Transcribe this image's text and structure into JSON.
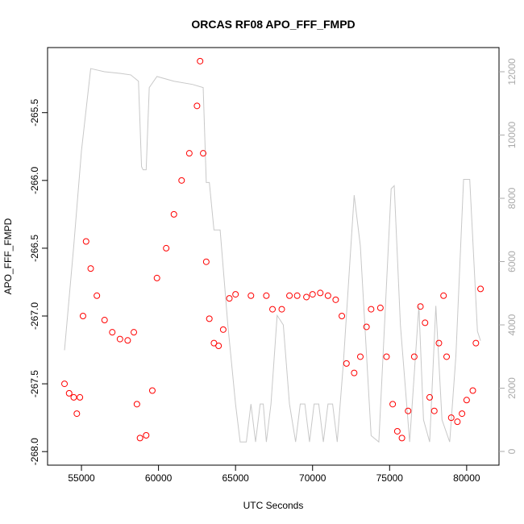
{
  "chart_data": {
    "type": "scatter",
    "title": "ORCAS RF08 APO_FFF_FMPD",
    "x_label": "UTC Seconds",
    "y_label": "APO_FFF_FMPD",
    "xlim": [
      52800,
      82100
    ],
    "ylim": [
      -268.1,
      -265.02
    ],
    "y2lim": [
      -433,
      12764
    ],
    "xticks": [
      55000,
      60000,
      65000,
      70000,
      75000,
      80000
    ],
    "yticks": [
      {
        "value": -268,
        "label": "-268.0"
      },
      {
        "value": -267.5,
        "label": "-267.5"
      },
      {
        "value": -267,
        "label": "-267.0"
      },
      -266.5,
      {
        "value": -266,
        "label": "-266.0"
      },
      -265.5
    ],
    "y2ticks": [
      0,
      2000,
      4000,
      6000,
      8000,
      10000,
      12000
    ],
    "series": [
      {
        "color": "#ff0000",
        "marker": "open-circle",
        "x": [
          53900,
          54200,
          54500,
          54700,
          54900,
          55100,
          55300,
          55600,
          56000,
          56500,
          57000,
          57500,
          58000,
          58400,
          58600,
          58800,
          59200,
          59600,
          59900,
          60500,
          61000,
          61500,
          62000,
          62500,
          62700,
          62900,
          63100,
          63300,
          63600,
          63900,
          64200,
          64600,
          65000,
          66000,
          67000,
          67400,
          68000,
          68500,
          69000,
          69600,
          70000,
          70500,
          71000,
          71500,
          71900,
          72200,
          72700,
          73100,
          73500,
          73800,
          74400,
          74800,
          75200,
          75500,
          75800,
          76200,
          76600,
          77000,
          77300,
          77600,
          77900,
          78200,
          78500,
          78700,
          79000,
          79400,
          79700,
          80000,
          80400,
          80600,
          80900
        ],
        "values": [
          -267.5,
          -267.57,
          -267.6,
          -267.72,
          -267.6,
          -267.0,
          -266.45,
          -266.65,
          -266.85,
          -267.03,
          -267.12,
          -267.17,
          -267.18,
          -267.12,
          -267.65,
          -267.9,
          -267.88,
          -267.55,
          -266.72,
          -266.5,
          -266.25,
          -266.0,
          -265.8,
          -265.45,
          -265.12,
          -265.8,
          -266.6,
          -267.02,
          -267.2,
          -267.22,
          -267.1,
          -266.87,
          -266.84,
          -266.85,
          -266.85,
          -266.95,
          -266.95,
          -266.85,
          -266.85,
          -266.86,
          -266.84,
          -266.83,
          -266.85,
          -266.88,
          -267.0,
          -267.35,
          -267.42,
          -267.3,
          -267.08,
          -266.95,
          -266.94,
          -267.3,
          -267.65,
          -267.85,
          -267.9,
          -267.7,
          -267.3,
          -266.93,
          -267.05,
          -267.6,
          -267.7,
          -267.2,
          -266.85,
          -267.3,
          -267.75,
          -267.78,
          -267.72,
          -267.62,
          -267.55,
          -267.2,
          -266.8
        ]
      },
      {
        "color": "#c8c8c8",
        "axis": "y2",
        "kind": "line",
        "x": [
          53900,
          54500,
          55000,
          55600,
          56500,
          57500,
          58200,
          58700,
          58900,
          59000,
          59200,
          59400,
          59900,
          61000,
          62200,
          62900,
          63100,
          63300,
          63600,
          64000,
          64500,
          65000,
          65300,
          65700,
          66000,
          66300,
          66600,
          66800,
          67000,
          67300,
          67700,
          68100,
          68500,
          68900,
          69200,
          69500,
          69800,
          70100,
          70400,
          70700,
          71000,
          71300,
          71600,
          72000,
          72700,
          73100,
          73800,
          74300,
          75100,
          75300,
          75700,
          76300,
          76900,
          77200,
          77600,
          78000,
          78400,
          78900,
          79300,
          79800,
          80200,
          80700,
          80900
        ],
        "values": [
          3200,
          6500,
          9500,
          12100,
          12000,
          11950,
          11900,
          11700,
          9000,
          8900,
          8900,
          11500,
          11850,
          11700,
          11600,
          11500,
          8500,
          8500,
          7000,
          7000,
          4000,
          1500,
          300,
          300,
          1500,
          300,
          1500,
          1500,
          300,
          1500,
          4300,
          4000,
          1500,
          300,
          1500,
          1500,
          300,
          1500,
          1500,
          300,
          1500,
          1500,
          300,
          2800,
          8100,
          6500,
          500,
          300,
          8300,
          8400,
          4000,
          300,
          4600,
          1000,
          300,
          4600,
          1000,
          300,
          3000,
          8600,
          8600,
          3800,
          3500
        ]
      }
    ]
  }
}
